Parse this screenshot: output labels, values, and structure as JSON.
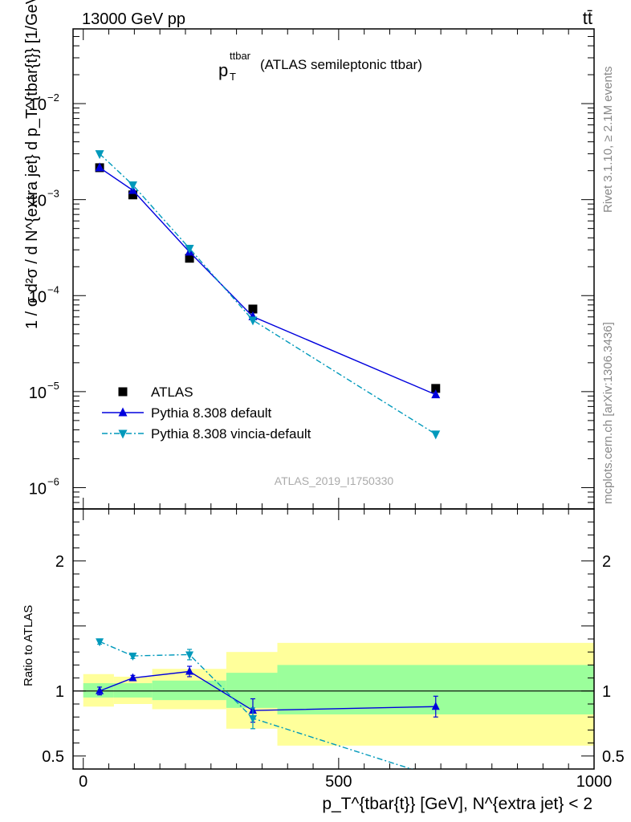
{
  "header": {
    "energy": "13000 GeV pp",
    "process": "tt̄",
    "rivet": "Rivet 3.1.10, ≥ 2.1M events",
    "site": "mcplots.cern.ch [arXiv:1306.3436]",
    "analysis": "ATLAS_2019_I1750330"
  },
  "labels": {
    "title_main": "p",
    "title_sup": "ttbar",
    "title_sub": "T",
    "title_rest": "(ATLAS semileptonic ttbar)",
    "ylabel": "1 / σ d²σ / d N^{extra jet} d p_T^{tbar{t}} [1/GeV]",
    "ratio_ylabel": "Ratio to ATLAS",
    "xlabel": "p_T^{tbar{t}} [GeV], N^{extra jet} < 2"
  },
  "chart_data": {
    "type": "line",
    "x": [
      32,
      97,
      208,
      332,
      690
    ],
    "bins": [
      [
        0,
        60
      ],
      [
        60,
        135
      ],
      [
        135,
        280
      ],
      [
        280,
        380
      ],
      [
        380,
        1000
      ]
    ],
    "xlim": [
      -20,
      1000
    ],
    "ylim": [
      6e-07,
      0.06
    ],
    "yscale": "log",
    "ratio_ylim": [
      0.4,
      2.4
    ],
    "xticks": [
      0,
      500,
      1000
    ],
    "yticks_main": [
      {
        "value": 0.01,
        "base": "10",
        "exp": "−2"
      },
      {
        "value": 0.001,
        "base": "10",
        "exp": "−3"
      },
      {
        "value": 0.0001,
        "base": "10",
        "exp": "−4"
      },
      {
        "value": 1e-05,
        "base": "10",
        "exp": "−5"
      },
      {
        "value": 1e-06,
        "base": "10",
        "exp": "−6"
      }
    ],
    "yticks_ratio": [
      {
        "value": 2,
        "label": "2"
      },
      {
        "value": 1,
        "label": "1"
      },
      {
        "value": 0.5,
        "label": "0.5"
      }
    ],
    "series": [
      {
        "name": "ATLAS",
        "color": "#000000",
        "marker": "square",
        "values": [
          0.00215,
          0.00112,
          0.000245,
          7.25e-05,
          1.08e-05
        ],
        "ratio": [
          1,
          1,
          1,
          1,
          1
        ]
      },
      {
        "name": "Pythia 8.308 default",
        "color": "#0000dd",
        "marker": "triangle-up",
        "dash": "solid",
        "values": [
          0.00215,
          0.00125,
          0.000285,
          6.05e-05,
          9.3e-06
        ],
        "ratio": [
          1.0,
          1.1,
          1.15,
          0.85,
          0.88
        ],
        "ratio_err": [
          0.03,
          0.02,
          0.04,
          0.09,
          0.08
        ]
      },
      {
        "name": "Pythia 8.308 vincia-default",
        "color": "#0099bb",
        "marker": "triangle-down",
        "dash": "dashdot",
        "values": [
          0.003,
          0.00142,
          0.00031,
          5.55e-05,
          3.6e-06
        ],
        "ratio": [
          1.38,
          1.27,
          1.28,
          0.79,
          0.34
        ],
        "ratio_err": [
          0.02,
          0.02,
          0.04,
          0.08,
          0.06
        ]
      }
    ],
    "bands": [
      {
        "x0": 0,
        "x1": 60,
        "stat_lo": 0.95,
        "stat_hi": 1.06,
        "tot_lo": 0.88,
        "tot_hi": 1.13
      },
      {
        "x0": 60,
        "x1": 135,
        "stat_lo": 0.95,
        "stat_hi": 1.06,
        "tot_lo": 0.9,
        "tot_hi": 1.11
      },
      {
        "x0": 135,
        "x1": 280,
        "stat_lo": 0.93,
        "stat_hi": 1.08,
        "tot_lo": 0.86,
        "tot_hi": 1.17
      },
      {
        "x0": 280,
        "x1": 380,
        "stat_lo": 0.87,
        "stat_hi": 1.14,
        "tot_lo": 0.71,
        "tot_hi": 1.3
      },
      {
        "x0": 380,
        "x1": 1000,
        "stat_lo": 0.82,
        "stat_hi": 1.2,
        "tot_lo": 0.58,
        "tot_hi": 1.37
      }
    ],
    "legend_position": "bottom-left",
    "colors": {
      "stat_band": "#9bff9b",
      "syst_band": "#ffff9b"
    }
  }
}
